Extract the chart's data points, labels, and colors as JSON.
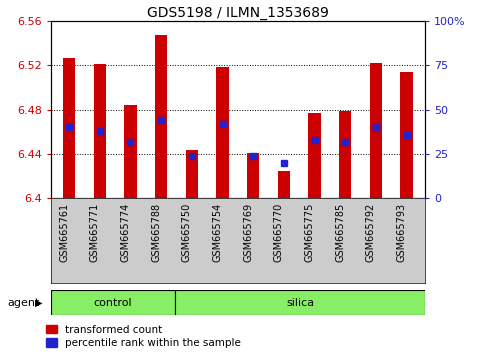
{
  "title": "GDS5198 / ILMN_1353689",
  "samples": [
    "GSM665761",
    "GSM665771",
    "GSM665774",
    "GSM665788",
    "GSM665750",
    "GSM665754",
    "GSM665769",
    "GSM665770",
    "GSM665775",
    "GSM665785",
    "GSM665792",
    "GSM665793"
  ],
  "groups": [
    "control",
    "control",
    "control",
    "control",
    "silica",
    "silica",
    "silica",
    "silica",
    "silica",
    "silica",
    "silica",
    "silica"
  ],
  "red_values": [
    6.527,
    6.521,
    6.484,
    6.548,
    6.444,
    6.519,
    6.441,
    6.425,
    6.477,
    6.479,
    6.522,
    6.514
  ],
  "blue_percentiles": [
    40,
    38,
    32,
    44,
    24,
    42,
    24,
    20,
    33,
    32,
    40,
    36
  ],
  "y_min": 6.4,
  "y_max": 6.56,
  "y_ticks": [
    6.4,
    6.44,
    6.48,
    6.52,
    6.56
  ],
  "y2_ticks": [
    0,
    25,
    50,
    75,
    100
  ],
  "y2_labels": [
    "0",
    "25",
    "50",
    "75",
    "100%"
  ],
  "bar_color": "#cc0000",
  "blue_color": "#2222cc",
  "tick_bg_color": "#cccccc",
  "green_color": "#88ee66",
  "agent_label": "agent",
  "control_label": "control",
  "silica_label": "silica",
  "legend_red_label": "transformed count",
  "legend_blue_label": "percentile rank within the sample",
  "bar_width": 0.4,
  "n_control": 4,
  "n_silica": 8
}
